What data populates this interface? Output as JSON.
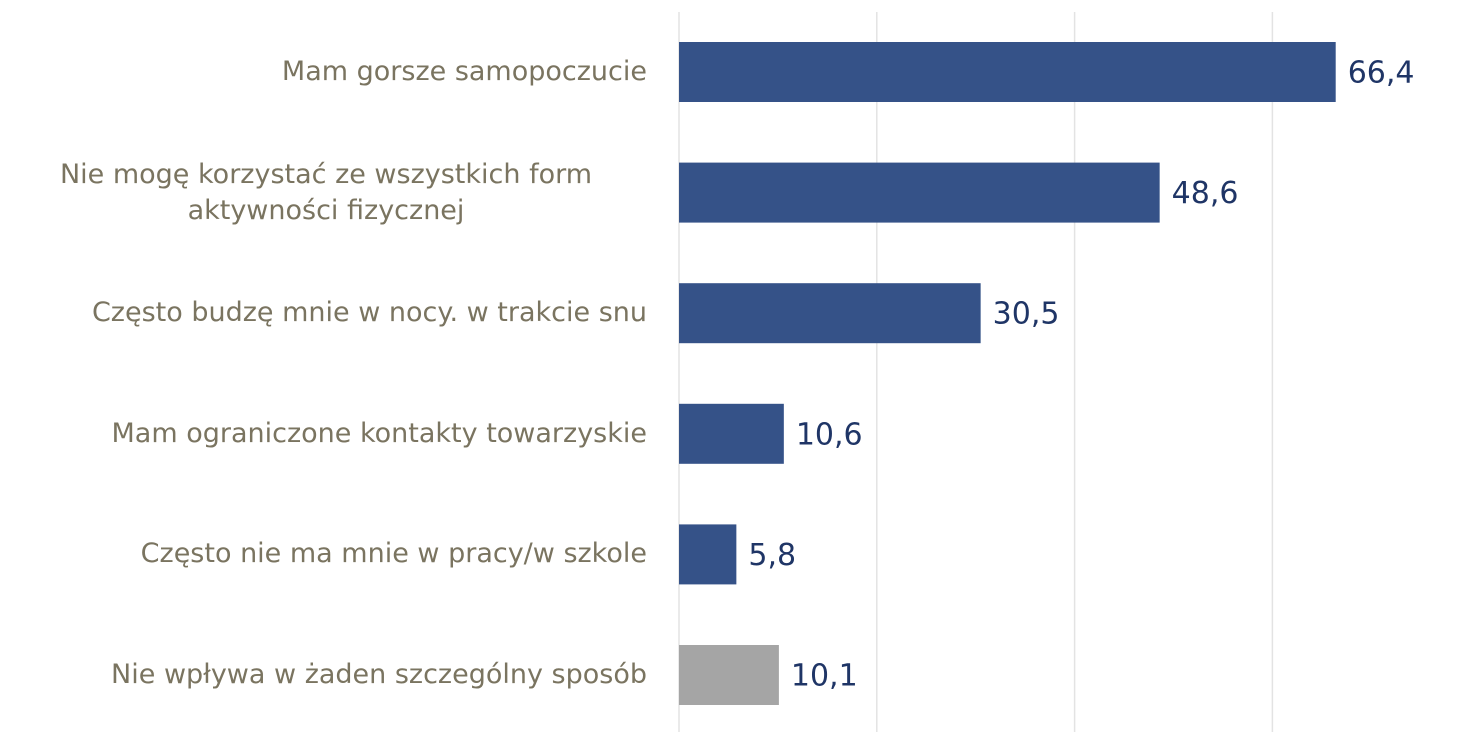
{
  "chart_data": {
    "type": "bar",
    "orientation": "horizontal",
    "categories": [
      "Mam gorsze samopoczucie",
      "Nie mogę korzystać ze wszystkich form aktywności fizycznej",
      "Często budzę mnie w nocy. w trakcie snu",
      "Mam ograniczone kontakty towarzyskie",
      "Często nie ma mnie w pracy/w szkole",
      "Nie wpływa w żaden szczególny sposób"
    ],
    "values": [
      66.4,
      48.6,
      30.5,
      10.6,
      5.8,
      10.1
    ],
    "value_labels": [
      "66,4",
      "48,6",
      "30,5",
      "10,6",
      "5,8",
      "10,1"
    ],
    "colors": [
      "#355288",
      "#355288",
      "#355288",
      "#355288",
      "#355288",
      "#a5a5a5"
    ],
    "xlim": [
      0,
      70
    ],
    "xticks": [
      0,
      20,
      40,
      60
    ],
    "grid": true
  }
}
